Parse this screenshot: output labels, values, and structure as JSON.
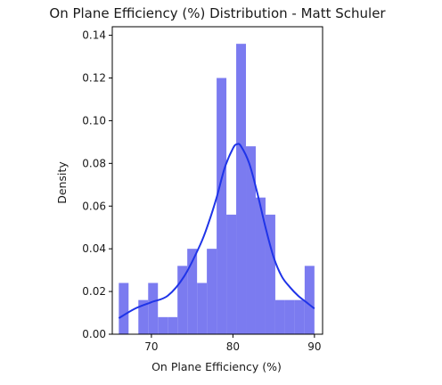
{
  "chart_data": {
    "type": "bar",
    "title": "On Plane Efficiency (%) Distribution - Matt Schuler",
    "xlabel": "On Plane Efficiency (%)",
    "ylabel": "Density",
    "xlim": [
      65.2,
      91.0
    ],
    "ylim": [
      0,
      0.144
    ],
    "x_ticks": [
      70,
      80,
      90
    ],
    "x_tick_labels": [
      "70",
      "80",
      "90"
    ],
    "y_ticks": [
      0.0,
      0.02,
      0.04,
      0.06,
      0.08,
      0.1,
      0.12,
      0.14
    ],
    "y_tick_labels": [
      "0.00",
      "0.02",
      "0.04",
      "0.06",
      "0.08",
      "0.10",
      "0.12",
      "0.14"
    ],
    "grid": false,
    "histogram": {
      "bin_edges": [
        66.0,
        67.2,
        68.4,
        69.6,
        70.8,
        72.0,
        73.2,
        74.4,
        75.6,
        76.8,
        78.0,
        79.2,
        80.4,
        81.6,
        82.8,
        84.0,
        85.2,
        86.4,
        87.6,
        88.8,
        90.0
      ],
      "densities": [
        0.024,
        0.0,
        0.016,
        0.024,
        0.008,
        0.008,
        0.032,
        0.04,
        0.024,
        0.04,
        0.12,
        0.056,
        0.136,
        0.088,
        0.064,
        0.056,
        0.016,
        0.016,
        0.016,
        0.032
      ],
      "color": "#7b7bf0"
    },
    "kde": {
      "x": [
        66.0,
        68.0,
        70.0,
        72.0,
        74.0,
        76.0,
        77.0,
        78.0,
        79.0,
        80.0,
        80.5,
        81.0,
        82.0,
        83.0,
        84.0,
        85.0,
        86.0,
        87.0,
        88.0,
        89.0,
        90.0
      ],
      "y": [
        0.0075,
        0.012,
        0.015,
        0.018,
        0.027,
        0.042,
        0.052,
        0.064,
        0.078,
        0.087,
        0.089,
        0.088,
        0.08,
        0.066,
        0.05,
        0.036,
        0.027,
        0.022,
        0.018,
        0.015,
        0.012
      ],
      "color": "#1f34e8"
    }
  }
}
